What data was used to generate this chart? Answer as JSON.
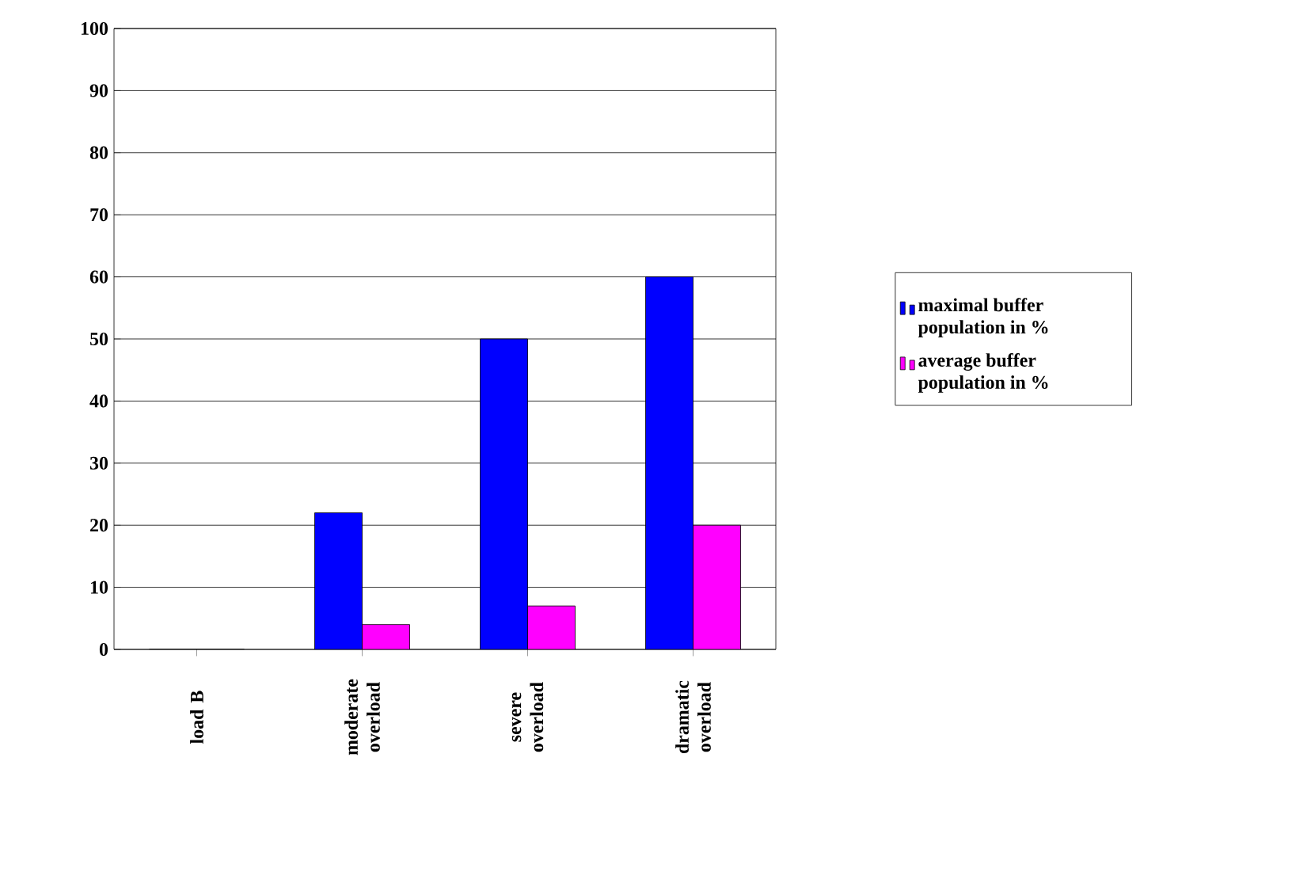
{
  "chart_data": {
    "type": "bar",
    "categories": [
      "load B",
      "moderate overload",
      "severe overload",
      "dramatic overload"
    ],
    "series": [
      {
        "name": "maximal buffer population in %",
        "color": "#0000ff",
        "values": [
          0,
          22,
          50,
          60
        ]
      },
      {
        "name": "average buffer population in %",
        "color": "#ff00ff",
        "values": [
          0,
          4,
          7,
          20
        ]
      }
    ],
    "ylim": [
      0,
      100
    ],
    "yticks": [
      0,
      10,
      20,
      30,
      40,
      50,
      60,
      70,
      80,
      90,
      100
    ],
    "grid": "y",
    "legend": "right"
  }
}
